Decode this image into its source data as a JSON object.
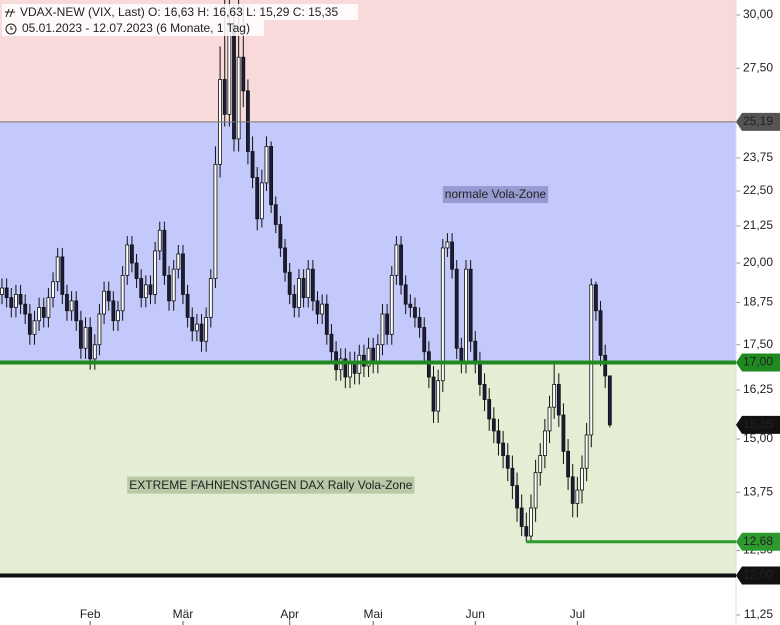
{
  "chart_data": {
    "type": "candlestick",
    "title": "VDAX-NEW (VIX, Last)  O: 16,63  H: 16,63  L: 15,29  C: 15,35",
    "subtitle": "05.01.2023 - 12.07.2023   (6 Monate, 1 Tag)",
    "log_scale": true,
    "ylim": [
      11.25,
      30
    ],
    "yticks": [
      {
        "value": 30,
        "label": "30,00"
      },
      {
        "value": 27.5,
        "label": "27,50"
      },
      {
        "value": 23.75,
        "label": "23,75"
      },
      {
        "value": 22.5,
        "label": "22,50"
      },
      {
        "value": 21.25,
        "label": "21,25"
      },
      {
        "value": 20,
        "label": "20,00"
      },
      {
        "value": 18.75,
        "label": "18,75"
      },
      {
        "value": 17.5,
        "label": "17,50"
      },
      {
        "value": 16.25,
        "label": "16,25"
      },
      {
        "value": 15,
        "label": "15,00"
      },
      {
        "value": 13.75,
        "label": "13,75"
      },
      {
        "value": 12.5,
        "label": "12,50"
      },
      {
        "value": 11.25,
        "label": "11,25"
      }
    ],
    "up_color": "#ffffff",
    "down_color": "#1c1c3c",
    "categories": [
      null,
      null,
      null,
      null,
      null,
      null,
      null,
      null,
      null,
      null,
      null,
      null,
      null,
      null,
      null,
      null,
      null,
      null,
      null,
      "Feb",
      null,
      null,
      null,
      null,
      null,
      null,
      null,
      null,
      null,
      null,
      null,
      null,
      null,
      null,
      null,
      null,
      null,
      null,
      null,
      "Mär",
      null,
      null,
      null,
      null,
      null,
      null,
      null,
      null,
      null,
      null,
      null,
      null,
      null,
      null,
      null,
      null,
      null,
      null,
      null,
      null,
      null,
      null,
      "Apr",
      null,
      null,
      null,
      null,
      null,
      null,
      null,
      null,
      null,
      null,
      null,
      null,
      null,
      null,
      null,
      null,
      null,
      "Mai",
      null,
      null,
      null,
      null,
      null,
      null,
      null,
      null,
      null,
      null,
      null,
      null,
      null,
      null,
      null,
      null,
      null,
      null,
      null,
      null,
      null,
      "Jun",
      null,
      null,
      null,
      null,
      null,
      null,
      null,
      null,
      null,
      null,
      null,
      null,
      null,
      null,
      null,
      null,
      null,
      null,
      null,
      null,
      null,
      "Jul",
      null,
      null,
      null,
      null,
      null,
      null,
      null
    ],
    "open": [
      19.0,
      19.2,
      18.9,
      18.6,
      19.0,
      18.7,
      18.4,
      17.8,
      18.2,
      18.6,
      18.3,
      18.9,
      19.4,
      20.2,
      19.0,
      18.5,
      18.8,
      18.2,
      17.4,
      18.0,
      17.1,
      17.5,
      18.4,
      19.1,
      18.8,
      18.2,
      18.5,
      19.6,
      20.6,
      20.0,
      19.5,
      18.9,
      19.3,
      19.0,
      20.4,
      21.1,
      19.6,
      18.8,
      19.8,
      20.3,
      19.0,
      18.3,
      17.9,
      18.1,
      17.6,
      18.3,
      19.5,
      23.5,
      27.0,
      25.5,
      29.5,
      24.5,
      28.0,
      26.5,
      24.0,
      23.0,
      21.5,
      22.8,
      24.2,
      22.0,
      21.3,
      20.5,
      19.7,
      19.0,
      18.6,
      19.5,
      18.9,
      19.8,
      18.8,
      18.4,
      18.7,
      17.8,
      17.3,
      16.8,
      17.1,
      16.6,
      17.0,
      16.7,
      17.2,
      16.9,
      17.4,
      17.0,
      17.5,
      18.4,
      17.8,
      19.6,
      20.6,
      19.3,
      18.7,
      18.6,
      18.3,
      18.0,
      17.3,
      16.6,
      15.7,
      16.5,
      20.5,
      20.7,
      19.8,
      17.4,
      17.0,
      19.8,
      17.6,
      17.0,
      16.4,
      16.0,
      15.5,
      15.2,
      14.9,
      14.6,
      14.3,
      13.9,
      13.4,
      13.0,
      12.8,
      13.4,
      14.2,
      14.6,
      15.2,
      15.8,
      16.4,
      15.6,
      14.7,
      14.1,
      13.5,
      13.8,
      14.3,
      15.1,
      19.3,
      18.5,
      17.2,
      16.63
    ],
    "high": [
      19.5,
      19.5,
      19.2,
      19.3,
      19.3,
      19.0,
      18.7,
      18.5,
      18.9,
      18.9,
      19.2,
      19.7,
      20.5,
      20.5,
      19.3,
      19.1,
      19.1,
      18.5,
      18.3,
      18.3,
      17.8,
      18.7,
      19.4,
      19.4,
      19.1,
      18.8,
      19.9,
      20.9,
      20.9,
      20.3,
      19.8,
      19.6,
      19.6,
      20.7,
      21.4,
      21.4,
      19.9,
      20.1,
      20.6,
      20.6,
      19.3,
      18.6,
      18.4,
      18.4,
      18.6,
      19.8,
      24.2,
      28.5,
      30.8,
      31.5,
      30.5,
      31.0,
      30.5,
      27.0,
      24.6,
      23.4,
      23.3,
      24.6,
      24.4,
      22.3,
      21.6,
      20.8,
      20.0,
      19.3,
      19.8,
      19.8,
      20.1,
      20.1,
      19.1,
      19.0,
      19.0,
      18.1,
      17.6,
      17.4,
      17.4,
      17.3,
      17.3,
      17.5,
      17.5,
      17.7,
      17.7,
      17.8,
      18.7,
      18.7,
      19.9,
      20.9,
      20.9,
      19.6,
      19.0,
      18.9,
      18.6,
      18.3,
      17.6,
      16.9,
      16.8,
      20.8,
      21.0,
      21.0,
      20.1,
      17.7,
      20.1,
      20.1,
      17.9,
      17.3,
      16.7,
      16.3,
      15.8,
      15.5,
      15.2,
      14.9,
      14.6,
      14.2,
      13.7,
      13.3,
      13.7,
      14.5,
      14.9,
      15.5,
      16.1,
      17.0,
      16.7,
      15.9,
      15.0,
      14.4,
      14.1,
      14.6,
      15.4,
      19.5,
      19.4,
      18.8,
      17.5,
      16.63
    ],
    "low": [
      18.7,
      18.6,
      18.3,
      18.3,
      18.4,
      18.1,
      17.5,
      17.5,
      17.9,
      18.0,
      18.0,
      18.6,
      19.1,
      18.7,
      18.2,
      18.2,
      17.9,
      17.1,
      17.1,
      16.8,
      16.8,
      17.2,
      18.1,
      18.5,
      17.9,
      17.9,
      18.2,
      19.3,
      19.7,
      19.2,
      18.6,
      18.6,
      18.7,
      18.7,
      20.1,
      19.3,
      18.5,
      18.5,
      19.5,
      18.7,
      18.0,
      17.6,
      17.6,
      17.3,
      17.3,
      18.0,
      19.2,
      23.0,
      25.0,
      25.0,
      24.0,
      24.0,
      25.8,
      23.5,
      22.6,
      21.1,
      21.2,
      22.5,
      21.7,
      21.0,
      20.2,
      19.4,
      18.7,
      18.3,
      18.3,
      18.6,
      18.6,
      18.5,
      18.1,
      18.1,
      17.5,
      17.0,
      16.5,
      16.5,
      16.3,
      16.3,
      16.4,
      16.4,
      16.6,
      16.6,
      16.7,
      16.7,
      17.2,
      17.5,
      17.5,
      19.3,
      19.0,
      18.4,
      18.3,
      18.0,
      17.7,
      17.0,
      16.3,
      15.4,
      15.4,
      16.2,
      20.2,
      19.5,
      17.1,
      16.7,
      16.7,
      17.3,
      16.7,
      16.1,
      15.7,
      15.2,
      14.9,
      14.6,
      14.3,
      14.0,
      13.6,
      13.1,
      12.8,
      12.68,
      12.7,
      13.1,
      13.9,
      14.3,
      14.9,
      15.5,
      15.3,
      14.4,
      13.8,
      13.2,
      13.2,
      13.5,
      14.0,
      14.8,
      18.2,
      16.9,
      16.3,
      15.29
    ],
    "close": [
      19.2,
      18.9,
      18.6,
      19.0,
      18.7,
      18.4,
      17.8,
      18.2,
      18.6,
      18.3,
      18.9,
      19.4,
      20.2,
      19.0,
      18.5,
      18.8,
      18.2,
      17.4,
      18.0,
      17.1,
      17.5,
      18.4,
      19.1,
      18.8,
      18.2,
      18.5,
      19.6,
      20.6,
      20.0,
      19.5,
      18.9,
      19.3,
      19.0,
      20.4,
      21.1,
      19.6,
      18.8,
      19.8,
      20.3,
      19.0,
      18.3,
      17.9,
      18.1,
      17.6,
      18.3,
      19.5,
      23.5,
      27.0,
      25.5,
      29.5,
      24.5,
      28.0,
      26.5,
      24.0,
      23.0,
      21.5,
      22.8,
      24.2,
      22.0,
      21.3,
      20.5,
      19.7,
      19.0,
      18.6,
      19.5,
      18.9,
      19.8,
      18.8,
      18.4,
      18.7,
      17.8,
      17.3,
      16.8,
      17.1,
      16.6,
      17.0,
      16.7,
      17.2,
      16.9,
      17.4,
      17.0,
      17.5,
      18.4,
      17.8,
      19.6,
      20.6,
      19.3,
      18.7,
      18.6,
      18.3,
      18.0,
      17.3,
      16.6,
      15.7,
      16.5,
      20.5,
      20.7,
      19.8,
      17.4,
      17.0,
      19.8,
      17.6,
      17.0,
      16.4,
      16.0,
      15.5,
      15.2,
      14.9,
      14.6,
      14.3,
      13.9,
      13.4,
      13.0,
      12.8,
      13.4,
      14.2,
      14.6,
      15.2,
      15.8,
      16.4,
      15.6,
      14.7,
      14.1,
      13.5,
      13.8,
      14.3,
      15.1,
      19.3,
      18.5,
      17.2,
      16.63,
      15.35
    ],
    "levels": [
      {
        "value": 25.19,
        "label": "25,19",
        "color": "#777777",
        "zone_above": "#f8dada"
      },
      {
        "value": 17,
        "label": "17,00",
        "color": "#1f8a1f",
        "zone_above": "#c3c9fa"
      },
      {
        "value": 12,
        "label": "12,00",
        "color": "#111111",
        "zone_above": "#e3eed4"
      }
    ],
    "low_line": {
      "value": 12.68,
      "label": "12,68",
      "color": "#2e9a2e"
    },
    "last_price": {
      "value": 15.35,
      "label": "15,35",
      "color": "#111111"
    },
    "annotations": [
      {
        "text": "normale Vola-Zone",
        "value": 22.35,
        "index": 95,
        "color": "#959bd0"
      },
      {
        "text": "EXTREME FAHNENSTANGEN DAX Rally Vola-Zone",
        "value": 13.9,
        "index": 27,
        "color": "#b9c8a6"
      }
    ]
  }
}
